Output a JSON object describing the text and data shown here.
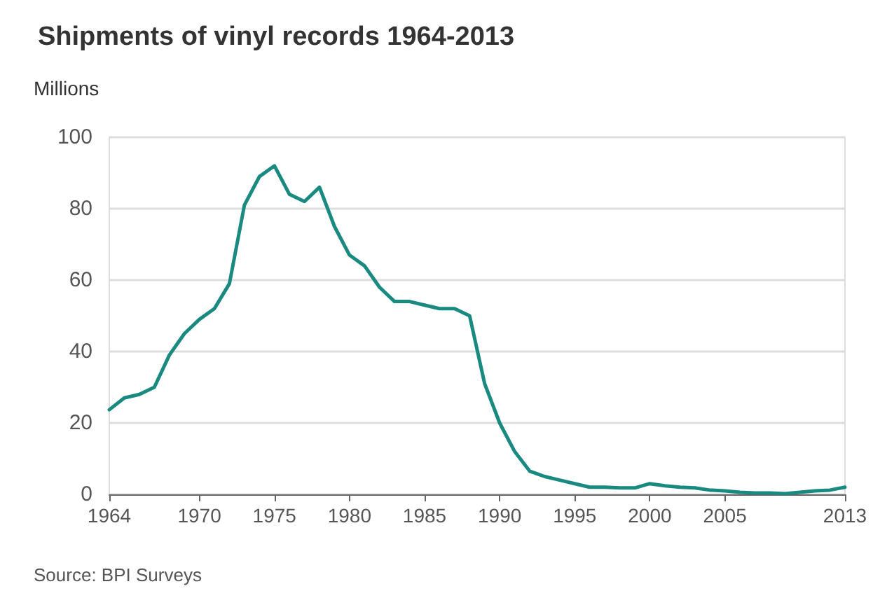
{
  "chart_data": {
    "type": "line",
    "title": "Shipments of vinyl records 1964-2013",
    "ylabel": "Millions",
    "annotations": [
      "Source: BPI Surveys"
    ],
    "x": [
      1964,
      1965,
      1966,
      1967,
      1968,
      1969,
      1970,
      1971,
      1972,
      1973,
      1974,
      1975,
      1976,
      1977,
      1978,
      1979,
      1980,
      1981,
      1982,
      1983,
      1984,
      1985,
      1986,
      1987,
      1988,
      1989,
      1990,
      1991,
      1992,
      1993,
      1994,
      1995,
      1996,
      1997,
      1998,
      1999,
      2000,
      2001,
      2002,
      2003,
      2004,
      2005,
      2006,
      2007,
      2008,
      2009,
      2010,
      2011,
      2012,
      2013
    ],
    "series": [
      {
        "color": "#1a8a80",
        "values": [
          23.7,
          27,
          28,
          30,
          39,
          45,
          49,
          52,
          59,
          81,
          89,
          92,
          84,
          82,
          86,
          75,
          67,
          64,
          58,
          54,
          54,
          53,
          52,
          52,
          50,
          31,
          20,
          12,
          6.5,
          5,
          4,
          3,
          2,
          2,
          1.8,
          1.8,
          3,
          2.4,
          2,
          1.8,
          1.2,
          1,
          0.6,
          0.4,
          0.4,
          0.2,
          0.6,
          1,
          1.2,
          2
        ]
      }
    ],
    "xlim": [
      1964,
      2013
    ],
    "xticks": [
      1964,
      1970,
      1975,
      1980,
      1985,
      1990,
      1995,
      2000,
      2005,
      2013
    ],
    "ylim": [
      0,
      100
    ],
    "yticks": [
      0,
      20,
      40,
      60,
      80,
      100
    ],
    "grid": "y",
    "marker": "none",
    "line_style": "solid"
  }
}
